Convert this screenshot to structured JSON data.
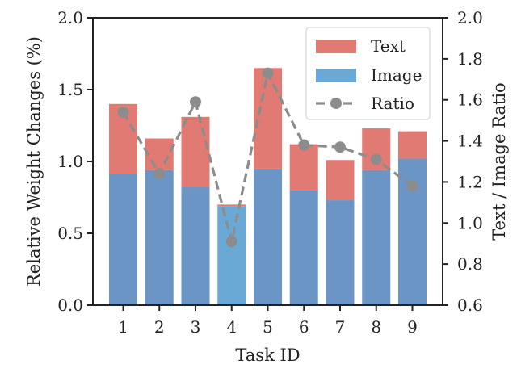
{
  "chart_data": {
    "type": "bar",
    "stacked": true,
    "xlabel": "Task ID",
    "ylabel": "Relative Weight Changes (%)",
    "y2label": "Text / Image Ratio",
    "categories": [
      "1",
      "2",
      "3",
      "4",
      "5",
      "6",
      "7",
      "8",
      "9"
    ],
    "ylim": [
      0.0,
      2.0
    ],
    "y2lim": [
      0.6,
      2.0
    ],
    "yticks": [
      "0.0",
      "0.5",
      "1.0",
      "1.5",
      "2.0"
    ],
    "y2ticks": [
      "0.6",
      "0.8",
      "1.0",
      "1.2",
      "1.4",
      "1.6",
      "1.8",
      "2.0"
    ],
    "series": [
      {
        "name": "Image",
        "axis": "left",
        "color": "#6a95c4",
        "values": [
          0.91,
          0.94,
          0.82,
          0.69,
          0.95,
          0.8,
          0.73,
          0.94,
          1.02
        ]
      },
      {
        "name": "Text",
        "axis": "left",
        "color": "#e07a72",
        "values": [
          0.49,
          0.22,
          0.49,
          0.01,
          0.7,
          0.32,
          0.28,
          0.29,
          0.19
        ]
      },
      {
        "name": "Ratio",
        "axis": "right",
        "type": "line",
        "style": "dashed",
        "marker": "circle",
        "color": "#8c8c8c",
        "values": [
          1.54,
          1.24,
          1.59,
          0.91,
          1.73,
          1.38,
          1.37,
          1.31,
          1.18
        ]
      }
    ],
    "legend": {
      "position": "top-right",
      "entries": [
        {
          "label": "Text",
          "swatch": "box",
          "color": "#e07a72"
        },
        {
          "label": "Image",
          "swatch": "box",
          "color": "#6aa9d6"
        },
        {
          "label": "Ratio",
          "swatch": "line-marker",
          "color": "#8c8c8c"
        }
      ]
    },
    "highlight": {
      "category": "4",
      "image_color": "#6aa9d6"
    },
    "grid": false
  }
}
